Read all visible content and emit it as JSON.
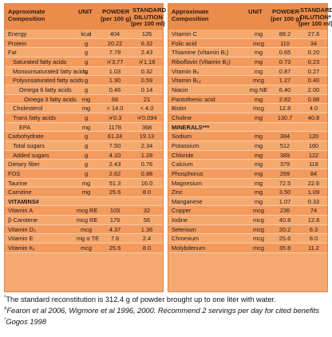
{
  "left": {
    "headers": {
      "c1a": "Approximate",
      "c1b": "Composition",
      "unit": "UNIT",
      "pa": "POWDER",
      "pb": "(per 100 g)",
      "sa": "STANDARD",
      "sb": "DILUTION",
      "sc": "(per 100 ml)"
    },
    "rows": [
      {
        "n": "Energy",
        "u": "kcal",
        "p": "404",
        "s": "126",
        "ind": 0
      },
      {
        "n": "Protein",
        "u": "g",
        "p": "20.22",
        "s": "6.32",
        "ind": 0
      },
      {
        "n": "Fat",
        "u": "g",
        "p": "7.79",
        "s": "2.43",
        "ind": 0
      },
      {
        "n": "Saturated fatty acids",
        "u": "g",
        "p": "≯ 3.77",
        "s": "≯ 1.18",
        "ind": 1
      },
      {
        "n": "Monounsaturated fatty acids",
        "u": "g",
        "p": "1.03",
        "s": "0.32",
        "ind": 1
      },
      {
        "n": "Polyunsaturated fatty acids",
        "u": "g",
        "p": "1.90",
        "s": "0.59",
        "ind": 1
      },
      {
        "n": "Omega 6 fatty acids",
        "u": "g",
        "p": "0.46",
        "s": "0.14",
        "ind": 2
      },
      {
        "n": "Omega 3 fatty acids",
        "u": "mg",
        "p": "66",
        "s": "21",
        "ind": 3
      },
      {
        "n": "Cholesterol",
        "u": "mg",
        "p": "< 14.0",
        "s": "< 4.0",
        "ind": 1
      },
      {
        "n": "Trans fatty acids",
        "u": "g",
        "p": "≯ 0.3",
        "s": "≯ 0.094",
        "ind": 1
      },
      {
        "n": "EPA",
        "u": "mg",
        "p": "1178",
        "s": "368",
        "ind": 2
      },
      {
        "n": "Carbohydrate",
        "u": "g",
        "p": "61.24",
        "s": "19.13",
        "ind": 0
      },
      {
        "n": "Total sugars",
        "u": "g",
        "p": "7.50",
        "s": "2.34",
        "ind": 1
      },
      {
        "n": "Added sugars",
        "u": "g",
        "p": "4.10",
        "s": "1.28",
        "ind": 1
      },
      {
        "n": "Dietary fiber",
        "u": "g",
        "p": "2.43",
        "s": "0.76",
        "ind": 0
      },
      {
        "n": "FOS",
        "u": "g",
        "p": "2.82",
        "s": "0.88",
        "ind": 0
      },
      {
        "n": "Taurine",
        "u": "mg",
        "p": "51.3",
        "s": "16.0",
        "ind": 0
      },
      {
        "n": "Carnitine",
        "u": "mg",
        "p": "25.6",
        "s": "8.0",
        "ind": 0
      },
      {
        "n": "VITAMINS#",
        "u": "",
        "p": "",
        "s": "",
        "ind": 0,
        "sec": true
      },
      {
        "n": "Vitamin A",
        "u": "mcg RE",
        "p": "103",
        "s": "32",
        "ind": 0
      },
      {
        "n": "β-Carotene",
        "u": "mcg RE",
        "p": "179",
        "s": "56",
        "ind": 0
      },
      {
        "n": "Vitamin D₃",
        "u": "mcg",
        "p": "4.37",
        "s": "1.36",
        "ind": 0
      },
      {
        "n": "Vitamin E",
        "u": "mg α TE",
        "p": "7.8",
        "s": "2.4",
        "ind": 0
      },
      {
        "n": "Vitamin K₁",
        "u": "mcg",
        "p": "25.6",
        "s": "8.0",
        "ind": 0
      }
    ]
  },
  "right": {
    "headers": {
      "c1a": "Approximate",
      "c1b": "Composition",
      "unit": "UNIT",
      "pa": "POWDER",
      "pb": "(per 100 g)",
      "sa": "STANDARD",
      "sb": "DILUTION*",
      "sc": "(per 100 ml)"
    },
    "rows": [
      {
        "n": "Vitamin C",
        "u": "mg",
        "p": "88.2",
        "s": "27.6",
        "ind": 0
      },
      {
        "n": "Folic acid",
        "u": "mcg",
        "p": "110",
        "s": "34",
        "ind": 0
      },
      {
        "n": "Thiamine (Vitamin B₁)",
        "u": "mg",
        "p": "0.65",
        "s": "0.20",
        "ind": 0
      },
      {
        "n": "Riboflavin (Vitamin B₂)",
        "u": "mg",
        "p": "0.73",
        "s": "0.23",
        "ind": 0
      },
      {
        "n": "Vitamin B₆",
        "u": "mg",
        "p": "0.87",
        "s": "0.27",
        "ind": 0
      },
      {
        "n": "Vitamin B₁₂",
        "u": "mcg",
        "p": "1.27",
        "s": "0.40",
        "ind": 0
      },
      {
        "n": "Niacin",
        "u": "mg NE",
        "p": "6.40",
        "s": "2.00",
        "ind": 0
      },
      {
        "n": "Pantothenic acid",
        "u": "mg",
        "p": "2.82",
        "s": "0.88",
        "ind": 0
      },
      {
        "n": "Biotin",
        "u": "mcg",
        "p": "12.8",
        "s": "4.0",
        "ind": 0
      },
      {
        "n": "Choline",
        "u": "mg",
        "p": "130.7",
        "s": "40.8",
        "ind": 0
      },
      {
        "n": "MINERALS***",
        "u": "",
        "p": "",
        "s": "",
        "ind": 0,
        "sec": true
      },
      {
        "n": "Sodium",
        "u": "mg",
        "p": "384",
        "s": "120",
        "ind": 0
      },
      {
        "n": "Potassium",
        "u": "mg",
        "p": "512",
        "s": "160",
        "ind": 0
      },
      {
        "n": "Chloride",
        "u": "mg",
        "p": "389",
        "s": "122",
        "ind": 0
      },
      {
        "n": "Calcium",
        "u": "mg",
        "p": "379",
        "s": "118",
        "ind": 0
      },
      {
        "n": "Phosphorus",
        "u": "mg",
        "p": "269",
        "s": "84",
        "ind": 0
      },
      {
        "n": "Magnesium",
        "u": "mg",
        "p": "72.5",
        "s": "22.6",
        "ind": 0
      },
      {
        "n": "Zinc",
        "u": "mg",
        "p": "3.50",
        "s": "1.09",
        "ind": 0
      },
      {
        "n": "Manganese",
        "u": "mg",
        "p": "1.07",
        "s": "0.33",
        "ind": 0
      },
      {
        "n": "Copper",
        "u": "mcg",
        "p": "236",
        "s": "74",
        "ind": 0
      },
      {
        "n": "Iodine",
        "u": "mcg",
        "p": "40.8",
        "s": "12.8",
        "ind": 0
      },
      {
        "n": "Selenium",
        "u": "mcg",
        "p": "20.2",
        "s": "6.3",
        "ind": 0
      },
      {
        "n": "Chromium",
        "u": "mcg",
        "p": "25.6",
        "s": "8.0",
        "ind": 0
      },
      {
        "n": "Molybdenum",
        "u": "mcg",
        "p": "35.8",
        "s": "11.2",
        "ind": 0
      }
    ]
  },
  "footnotes": {
    "f1_mark": "*",
    "f1": "The standard reconstitution is 312.4 g of powder brought up to one liter with water.",
    "f2_mark": "#",
    "f2": "Fearon et al 2006, Wigmore et al 1996, 2000. Recommend 2 servings per day for cited benefits",
    "f3_mark": "*",
    "f3": "Gogos 1998"
  },
  "colors": {
    "header": "#ea8c4b",
    "row_light": "#f6a96f",
    "row_dark": "#f39a5d"
  }
}
